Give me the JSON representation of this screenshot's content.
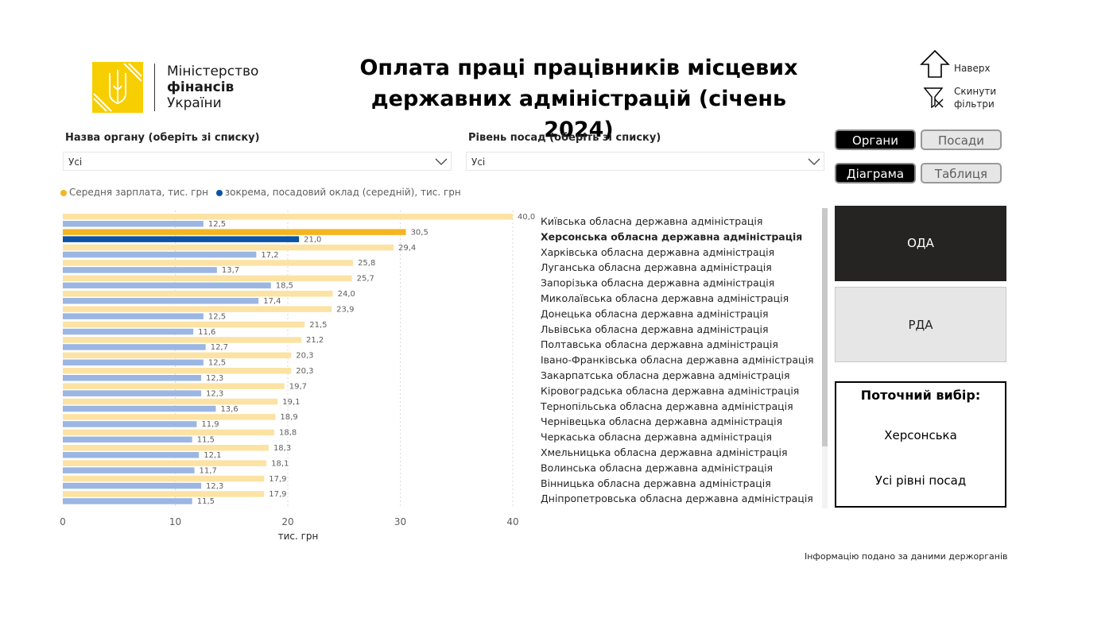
{
  "logo": {
    "line1": "Міністерство",
    "line2": "фінансів",
    "line3": "України"
  },
  "title": {
    "line1": "Оплата праці працівників місцевих",
    "line2": "державних адміністрацій (січень 2024)"
  },
  "links": {
    "top": "Наверх",
    "reset_line1": "Скинути",
    "reset_line2": "фільтри"
  },
  "filters": {
    "org": {
      "label": "Назва органу (оберіть зі списку)",
      "value": "Усі"
    },
    "level": {
      "label": "Рівень посад (оберіть зі списку)",
      "value": "Усі"
    }
  },
  "toggles": {
    "organs": "Органи",
    "positions": "Посади",
    "diagram": "Діаграма",
    "table": "Таблиця"
  },
  "tiles": {
    "oda": "ОДА",
    "rda": "РДА"
  },
  "current": {
    "title": "Поточний вибір:",
    "org": "Херсонська",
    "level": "Усі рівні посад"
  },
  "footer": "Інформацію подано за даними держорганів",
  "colors": {
    "avg_light": "#FCE3A4",
    "avg_highlight": "#F3B521",
    "base_light": "#9BB6E2",
    "base_highlight": "#0A53A6",
    "logo_yellow": "#F7CE00"
  },
  "chart_data": {
    "type": "bar",
    "orientation": "horizontal",
    "legend": [
      {
        "name": "Середня зарплата, тис. грн",
        "color": "#F3B521"
      },
      {
        "name": "зокрема, посадовий оклад (середній), тис. грн",
        "color": "#0A53A6"
      }
    ],
    "categories": [
      "Київська обласна державна адміністрація",
      "Херсонська обласна державна адміністрація",
      "Харківська обласна державна адміністрація",
      "Луганська обласна державна адміністрація",
      "Запорізька обласна державна адміністрація",
      "Миколаївська обласна державна адміністрація",
      "Донецька обласна державна адміністрація",
      "Львівська обласна державна адміністрація",
      "Полтавська обласна державна адміністрація",
      "Івано-Франківська обласна державна адміністрація",
      "Закарпатська обласна державна адміністрація",
      "Кіровоградська обласна державна адміністрація",
      "Тернопільська обласна державна адміністрація",
      "Чернівецька обласна державна адміністрація",
      "Черкаська обласна державна адміністрація",
      "Хмельницька обласна державна адміністрація",
      "Волинська обласна державна адміністрація",
      "Вінницька обласна державна адміністрація",
      "Дніпропетровська обласна державна адміністрація"
    ],
    "series": [
      {
        "name": "Середня зарплата, тис. грн",
        "values": [
          40.0,
          30.5,
          29.4,
          25.8,
          25.7,
          24.0,
          23.9,
          21.5,
          21.2,
          20.3,
          20.3,
          19.7,
          19.1,
          18.9,
          18.8,
          18.3,
          18.1,
          17.9,
          17.9
        ],
        "labels": [
          "40,0",
          "30,5",
          "29,4",
          "25,8",
          "25,7",
          "24,0",
          "23,9",
          "21,5",
          "21,2",
          "20,3",
          "20,3",
          "19,7",
          "19,1",
          "18,9",
          "18,8",
          "18,3",
          "18,1",
          "17,9",
          "17,9"
        ]
      },
      {
        "name": "зокрема, посадовий оклад (середній), тис. грн",
        "values": [
          12.5,
          21.0,
          17.2,
          13.7,
          18.5,
          17.4,
          12.5,
          11.6,
          12.7,
          12.5,
          12.3,
          12.3,
          13.6,
          11.9,
          11.5,
          12.1,
          11.7,
          12.3,
          11.5
        ],
        "labels": [
          "12,5",
          "21,0",
          "17,2",
          "13,7",
          "18,5",
          "17,4",
          "12,5",
          "11,6",
          "12,7",
          "12,5",
          "12,3",
          "12,3",
          "13,6",
          "11,9",
          "11,5",
          "12,1",
          "11,7",
          "12,3",
          "11,5"
        ]
      }
    ],
    "highlight_index": 1,
    "x_ticks": [
      0,
      10,
      20,
      30,
      40
    ],
    "x_tick_labels": [
      "0",
      "10",
      "20",
      "30",
      "40"
    ],
    "xlabel": "тис. грн",
    "xlim": [
      0,
      40
    ],
    "grid": true
  }
}
